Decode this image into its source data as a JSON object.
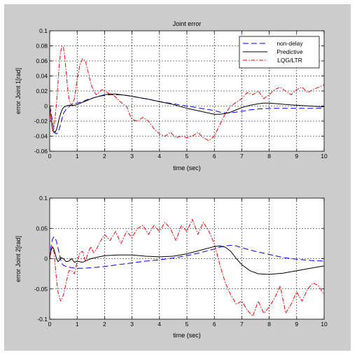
{
  "chart_data": [
    {
      "type": "line",
      "title": "Joint error",
      "xlabel": "time (sec)",
      "ylabel": "error Joint 1[rad]",
      "xlim": [
        0,
        10
      ],
      "ylim": [
        -0.06,
        0.1
      ],
      "xticks": [
        0,
        1,
        2,
        3,
        4,
        5,
        6,
        7,
        8,
        9,
        10
      ],
      "yticks": [
        -0.06,
        -0.04,
        -0.02,
        0,
        0.02,
        0.04,
        0.06,
        0.08,
        0.1
      ],
      "xtick_labels": [
        "0",
        "1",
        "2",
        "3",
        "4",
        "5",
        "6",
        "7",
        "8",
        "9",
        "10"
      ],
      "ytick_labels": [
        "-0.06",
        "-0.04",
        "-0.02",
        "0",
        "0.02",
        "0.04",
        "0.06",
        "0.08",
        "0.1"
      ],
      "grid": true,
      "legend_position": "top-right",
      "series": [
        {
          "name": "non-delay",
          "color": "#0000ff",
          "style": "dashed",
          "x": [
            0,
            0.05,
            0.1,
            0.15,
            0.2,
            0.25,
            0.3,
            0.35,
            0.4,
            0.45,
            0.5,
            0.6,
            0.7,
            0.8,
            0.9,
            1.0,
            1.2,
            1.4,
            1.6,
            1.8,
            2.0,
            2.2,
            2.4,
            2.6,
            2.8,
            3.0,
            3.3,
            3.6,
            4.0,
            4.5,
            5.0,
            5.5,
            6.0,
            6.2,
            6.4,
            6.6,
            6.8,
            7.0,
            7.3,
            7.6,
            8.0,
            8.5,
            9.0,
            9.5,
            10.0
          ],
          "y": [
            0,
            -0.008,
            -0.02,
            -0.03,
            -0.036,
            -0.037,
            -0.035,
            -0.03,
            -0.024,
            -0.017,
            -0.01,
            -0.004,
            -0.001,
            0.002,
            0.003,
            0.004,
            0.006,
            0.009,
            0.011,
            0.013,
            0.014,
            0.015,
            0.015,
            0.015,
            0.014,
            0.013,
            0.011,
            0.009,
            0.006,
            0.003,
            0.0,
            -0.003,
            -0.006,
            -0.008,
            -0.009,
            -0.009,
            -0.008,
            -0.007,
            -0.005,
            -0.004,
            -0.003,
            -0.003,
            -0.003,
            -0.003,
            -0.003
          ]
        },
        {
          "name": "Predictive",
          "color": "#000000",
          "style": "solid",
          "x": [
            0,
            0.05,
            0.1,
            0.15,
            0.2,
            0.25,
            0.3,
            0.35,
            0.4,
            0.45,
            0.5,
            0.6,
            0.7,
            0.8,
            0.9,
            1.0,
            1.2,
            1.4,
            1.6,
            1.8,
            2.0,
            2.2,
            2.4,
            2.6,
            2.8,
            3.0,
            3.3,
            3.6,
            4.0,
            4.5,
            5.0,
            5.5,
            6.0,
            6.2,
            6.4,
            6.6,
            6.8,
            7.0,
            7.3,
            7.6,
            7.8,
            8.0,
            8.3,
            8.6,
            9.0,
            9.5,
            10.0
          ],
          "y": [
            0,
            -0.018,
            -0.03,
            -0.035,
            -0.035,
            -0.031,
            -0.024,
            -0.016,
            -0.01,
            -0.005,
            -0.002,
            0.0,
            0.001,
            0.001,
            0.001,
            0.002,
            0.005,
            0.008,
            0.011,
            0.013,
            0.015,
            0.016,
            0.016,
            0.015,
            0.014,
            0.013,
            0.011,
            0.009,
            0.006,
            0.002,
            -0.003,
            -0.007,
            -0.011,
            -0.011,
            -0.01,
            -0.008,
            -0.005,
            -0.002,
            0.001,
            0.003,
            0.004,
            0.004,
            0.003,
            0.002,
            0.001,
            0.0,
            -0.001
          ]
        },
        {
          "name": "LQG/LTR",
          "color": "#ff0000",
          "style": "dashdot",
          "x": [
            0,
            0.05,
            0.1,
            0.15,
            0.2,
            0.25,
            0.3,
            0.35,
            0.4,
            0.45,
            0.5,
            0.55,
            0.6,
            0.65,
            0.7,
            0.8,
            0.9,
            1.0,
            1.1,
            1.2,
            1.3,
            1.4,
            1.5,
            1.6,
            1.7,
            1.8,
            1.9,
            2.0,
            2.1,
            2.2,
            2.3,
            2.4,
            2.5,
            2.6,
            2.7,
            2.8,
            2.9,
            3.0,
            3.2,
            3.4,
            3.6,
            3.8,
            4.0,
            4.2,
            4.4,
            4.6,
            4.8,
            5.0,
            5.2,
            5.4,
            5.6,
            5.8,
            6.0,
            6.2,
            6.4,
            6.6,
            6.8,
            7.0,
            7.2,
            7.4,
            7.6,
            7.8,
            8.0,
            8.2,
            8.4,
            8.6,
            8.8,
            9.0,
            9.2,
            9.4,
            9.6,
            9.8,
            10.0
          ],
          "y": [
            0,
            -0.02,
            -0.033,
            -0.03,
            -0.015,
            0.005,
            0.03,
            0.055,
            0.072,
            0.08,
            0.078,
            0.065,
            0.045,
            0.025,
            0.01,
            0.0,
            0.01,
            0.035,
            0.055,
            0.063,
            0.06,
            0.045,
            0.03,
            0.02,
            0.015,
            0.018,
            0.022,
            0.02,
            0.018,
            0.016,
            0.015,
            0.012,
            0.008,
            0.005,
            0.002,
            0.0,
            -0.01,
            -0.018,
            -0.02,
            -0.015,
            -0.02,
            -0.03,
            -0.037,
            -0.04,
            -0.035,
            -0.042,
            -0.04,
            -0.042,
            -0.04,
            -0.035,
            -0.042,
            -0.046,
            -0.04,
            -0.025,
            -0.01,
            0.0,
            0.005,
            0.01,
            0.018,
            0.015,
            0.02,
            0.01,
            0.015,
            0.022,
            0.025,
            0.02,
            0.015,
            0.022,
            0.025,
            0.018,
            0.022,
            0.025,
            0.028
          ]
        }
      ]
    },
    {
      "type": "line",
      "title": "",
      "xlabel": "time (sec)",
      "ylabel": "error Joint 2[rad]",
      "xlim": [
        0,
        10
      ],
      "ylim": [
        -0.1,
        0.1
      ],
      "xticks": [
        0,
        1,
        2,
        3,
        4,
        5,
        6,
        7,
        8,
        9,
        10
      ],
      "yticks": [
        -0.1,
        -0.05,
        0,
        0.05,
        0.1
      ],
      "xtick_labels": [
        "0",
        "1",
        "2",
        "3",
        "4",
        "5",
        "6",
        "7",
        "8",
        "9",
        "10"
      ],
      "ytick_labels": [
        "-0.1",
        "-0.05",
        "0",
        "0.05",
        "0.1"
      ],
      "grid": true,
      "series": [
        {
          "color": "#0000ff",
          "style": "dashed",
          "x": [
            0,
            0.05,
            0.1,
            0.15,
            0.2,
            0.25,
            0.3,
            0.35,
            0.4,
            0.45,
            0.5,
            0.6,
            0.7,
            0.8,
            1.0,
            1.2,
            1.5,
            2.0,
            2.5,
            3.0,
            3.5,
            4.0,
            4.5,
            5.0,
            5.5,
            6.0,
            6.2,
            6.4,
            6.6,
            6.8,
            7.0,
            7.5,
            8.0,
            8.5,
            9.0,
            9.5,
            10.0
          ],
          "y": [
            0,
            0.02,
            0.032,
            0.036,
            0.034,
            0.028,
            0.018,
            0.008,
            -0.002,
            -0.008,
            -0.011,
            -0.013,
            -0.014,
            -0.015,
            -0.016,
            -0.016,
            -0.015,
            -0.013,
            -0.01,
            -0.007,
            -0.004,
            -0.002,
            0.001,
            0.005,
            0.01,
            0.016,
            0.019,
            0.021,
            0.022,
            0.021,
            0.018,
            0.012,
            0.007,
            0.002,
            -0.001,
            -0.003,
            -0.004
          ]
        },
        {
          "color": "#000000",
          "style": "solid",
          "x": [
            0,
            0.05,
            0.1,
            0.15,
            0.2,
            0.25,
            0.3,
            0.35,
            0.4,
            0.5,
            0.6,
            0.7,
            0.8,
            0.9,
            1.0,
            1.2,
            1.5,
            2.0,
            2.5,
            3.0,
            3.5,
            4.0,
            4.5,
            5.0,
            5.5,
            6.0,
            6.2,
            6.4,
            6.6,
            6.8,
            7.0,
            7.3,
            7.6,
            8.0,
            8.5,
            9.0,
            9.5,
            10.0
          ],
          "y": [
            0,
            0.015,
            0.02,
            0.016,
            0.008,
            0.0,
            -0.005,
            -0.003,
            0.002,
            0.0,
            -0.005,
            -0.004,
            0.0,
            -0.006,
            -0.004,
            -0.006,
            0.0,
            0.005,
            0.006,
            0.006,
            0.004,
            0.003,
            0.004,
            0.008,
            0.014,
            0.02,
            0.021,
            0.019,
            0.012,
            0.0,
            -0.01,
            -0.02,
            -0.025,
            -0.026,
            -0.024,
            -0.02,
            -0.016,
            -0.012
          ]
        },
        {
          "color": "#ff0000",
          "style": "dashdot",
          "x": [
            0,
            0.05,
            0.1,
            0.15,
            0.2,
            0.25,
            0.3,
            0.4,
            0.5,
            0.6,
            0.7,
            0.8,
            0.9,
            1.0,
            1.1,
            1.2,
            1.3,
            1.4,
            1.5,
            1.6,
            1.7,
            1.8,
            2.0,
            2.2,
            2.4,
            2.6,
            2.8,
            3.0,
            3.2,
            3.4,
            3.6,
            3.8,
            4.0,
            4.2,
            4.4,
            4.6,
            4.8,
            5.0,
            5.2,
            5.4,
            5.6,
            5.8,
            6.0,
            6.2,
            6.4,
            6.6,
            6.8,
            7.0,
            7.2,
            7.4,
            7.6,
            7.8,
            8.0,
            8.2,
            8.4,
            8.6,
            8.8,
            9.0,
            9.2,
            9.4,
            9.6,
            9.8,
            10.0
          ],
          "y": [
            0,
            0.012,
            0.02,
            0.012,
            -0.01,
            -0.035,
            -0.055,
            -0.07,
            -0.06,
            -0.04,
            -0.02,
            -0.02,
            -0.025,
            -0.005,
            0.01,
            0.012,
            -0.005,
            0.01,
            0.02,
            0.01,
            0.015,
            0.025,
            0.04,
            0.03,
            0.045,
            0.025,
            0.045,
            0.035,
            0.05,
            0.055,
            0.04,
            0.055,
            0.045,
            0.06,
            0.05,
            0.03,
            0.055,
            0.045,
            0.065,
            0.04,
            0.06,
            0.045,
            0.025,
            -0.01,
            -0.04,
            -0.06,
            -0.075,
            -0.07,
            -0.085,
            -0.095,
            -0.07,
            -0.09,
            -0.08,
            -0.065,
            -0.045,
            -0.09,
            -0.075,
            -0.055,
            -0.07,
            -0.05,
            -0.04,
            -0.045,
            -0.06
          ]
        }
      ]
    }
  ]
}
